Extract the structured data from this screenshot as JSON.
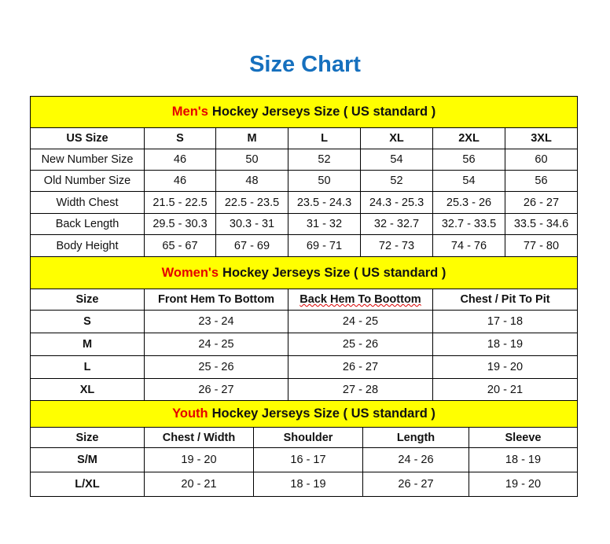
{
  "title": "Size Chart",
  "colors": {
    "title": "#1670be",
    "banner_bg": "#ffff00",
    "banner_highlight": "#e50000"
  },
  "men": {
    "banner_highlight": "Men's",
    "banner_rest": "Hockey Jerseys Size ( US standard )",
    "headers": [
      "US Size",
      "S",
      "M",
      "L",
      "XL",
      "2XL",
      "3XL"
    ],
    "rows": [
      [
        "New Number Size",
        "46",
        "50",
        "52",
        "54",
        "56",
        "60"
      ],
      [
        "Old Number Size",
        "46",
        "48",
        "50",
        "52",
        "54",
        "56"
      ],
      [
        "Width Chest",
        "21.5 - 22.5",
        "22.5 - 23.5",
        "23.5 - 24.3",
        "24.3 - 25.3",
        "25.3 - 26",
        "26 - 27"
      ],
      [
        "Back Length",
        "29.5 - 30.3",
        "30.3 - 31",
        "31 - 32",
        "32 - 32.7",
        "32.7 - 33.5",
        "33.5 - 34.6"
      ],
      [
        "Body Height",
        "65 - 67",
        "67 - 69",
        "69 - 71",
        "72 - 73",
        "74 - 76",
        "77 - 80"
      ]
    ]
  },
  "women": {
    "banner_highlight": "Women's",
    "banner_rest": "Hockey Jerseys Size ( US standard )",
    "headers": [
      "Size",
      "Front Hem To Bottom",
      "Back Hem To Boottom",
      "Chest / Pit To Pit"
    ],
    "rows": [
      [
        "S",
        "23 - 24",
        "24 - 25",
        "17 - 18"
      ],
      [
        "M",
        "24 - 25",
        "25 - 26",
        "18 - 19"
      ],
      [
        "L",
        "25 - 26",
        "26 - 27",
        "19 - 20"
      ],
      [
        "XL",
        "26 - 27",
        "27 - 28",
        "20 - 21"
      ]
    ]
  },
  "youth": {
    "banner_highlight": "Youth",
    "banner_rest": "Hockey Jerseys Size ( US standard )",
    "headers": [
      "Size",
      "Chest / Width",
      "Shoulder",
      "Length",
      "Sleeve"
    ],
    "rows": [
      [
        "S/M",
        "19 - 20",
        "16 - 17",
        "24 - 26",
        "18 - 19"
      ],
      [
        "L/XL",
        "20 - 21",
        "18 - 19",
        "26 - 27",
        "19 - 20"
      ]
    ]
  }
}
